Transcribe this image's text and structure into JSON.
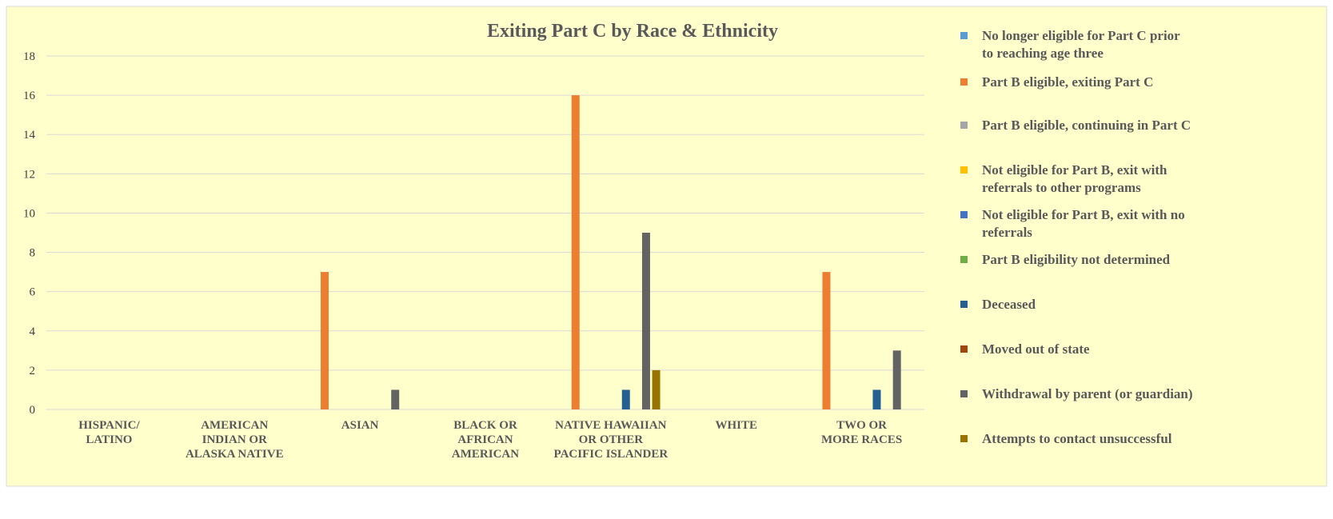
{
  "chart_data": {
    "type": "bar",
    "title": "Exiting Part C by Race & Ethnicity",
    "xlabel": "",
    "ylabel": "",
    "ylim": [
      0,
      18
    ],
    "yticks": [
      0,
      2,
      4,
      6,
      8,
      10,
      12,
      14,
      16,
      18
    ],
    "grid": true,
    "legend_position": "right",
    "categories": [
      [
        "HISPANIC/",
        "LATINO"
      ],
      [
        "AMERICAN",
        "INDIAN OR",
        "ALASKA NATIVE"
      ],
      [
        "ASIAN"
      ],
      [
        "BLACK OR",
        "AFRICAN",
        "AMERICAN"
      ],
      [
        "NATIVE HAWAIIAN",
        "OR OTHER",
        "PACIFIC ISLANDER"
      ],
      [
        "WHITE"
      ],
      [
        "TWO OR",
        "MORE RACES"
      ]
    ],
    "series": [
      {
        "name": [
          "No longer eligible for Part C prior",
          "to reaching age three"
        ],
        "color": "#5B9BD5",
        "values": [
          0,
          0,
          0,
          0,
          0,
          0,
          0
        ]
      },
      {
        "name": [
          "Part B eligible, exiting Part C"
        ],
        "color": "#ED7D31",
        "values": [
          0,
          0,
          7,
          0,
          16,
          0,
          7
        ]
      },
      {
        "name": [
          "Part B eligible, continuing in Part C"
        ],
        "color": "#A5A5A5",
        "values": [
          0,
          0,
          0,
          0,
          0,
          0,
          0
        ]
      },
      {
        "name": [
          "Not eligible for Part B, exit with",
          "referrals to other programs"
        ],
        "color": "#FFC000",
        "values": [
          0,
          0,
          0,
          0,
          0,
          0,
          0
        ]
      },
      {
        "name": [
          "Not eligible for Part B, exit with no",
          "referrals"
        ],
        "color": "#4472C4",
        "values": [
          0,
          0,
          0,
          0,
          0,
          0,
          0
        ]
      },
      {
        "name": [
          "Part B eligibility not determined"
        ],
        "color": "#70AD47",
        "values": [
          0,
          0,
          0,
          0,
          0,
          0,
          0
        ]
      },
      {
        "name": [
          "Deceased"
        ],
        "color": "#255E91",
        "values": [
          0,
          0,
          0,
          0,
          1,
          0,
          1
        ]
      },
      {
        "name": [
          "Moved out of state"
        ],
        "color": "#9E480E",
        "values": [
          0,
          0,
          0,
          0,
          0,
          0,
          0
        ]
      },
      {
        "name": [
          "Withdrawal by parent (or guardian)"
        ],
        "color": "#636363",
        "values": [
          0,
          0,
          1,
          0,
          9,
          0,
          3
        ]
      },
      {
        "name": [
          "Attempts to contact unsuccessful"
        ],
        "color": "#997300",
        "values": [
          0,
          0,
          0,
          0,
          2,
          0,
          0
        ]
      }
    ],
    "colors": {
      "background": "#FFFFCC",
      "gridline": "#D9D9D9",
      "title": "#595959"
    }
  }
}
